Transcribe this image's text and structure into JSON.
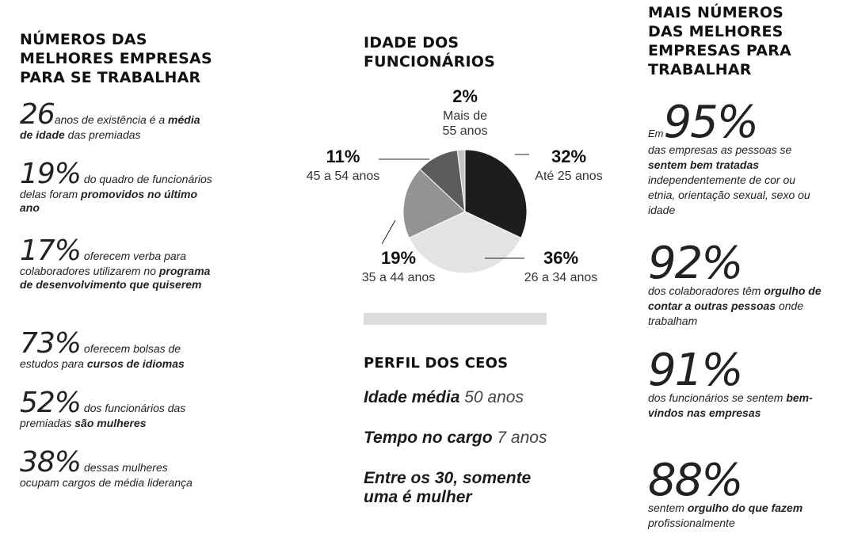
{
  "left": {
    "title_lines": [
      "NÚMEROS DAS",
      "MELHORES EMPRESAS",
      "PARA SE TRABALHAR"
    ],
    "stats": [
      {
        "big": "26",
        "pre": "anos de existência é a ",
        "bold": "média de idade",
        "post": " das premiadas"
      },
      {
        "big": "19%",
        "pre": "do quadro de funcionários delas foram ",
        "bold": "promovidos no último ano",
        "post": ""
      },
      {
        "big": "17%",
        "pre": "oferecem verba para colaboradores utilizarem no ",
        "bold": "programa de desenvolvimento que quiserem",
        "post": ""
      },
      {
        "big": "73%",
        "pre": "oferecem bolsas de estudos para ",
        "bold": "cursos de idiomas",
        "post": ""
      },
      {
        "big": "52%",
        "pre": "dos funcionários das premiadas  ",
        "bold": "são mulheres",
        "post": ""
      },
      {
        "big": "38%",
        "pre": "dessas mulheres ocupam cargos de média liderança",
        "bold": "",
        "post": ""
      }
    ]
  },
  "middle": {
    "title_lines": [
      "IDADE DOS",
      "FUNCIONÁRIOS"
    ],
    "ceo_title": "PERFIL DOS CEOS",
    "ceo_lines": [
      {
        "bold": "Idade média",
        "light": " 50 anos"
      },
      {
        "bold": "Tempo no cargo",
        "light": " 7 anos"
      },
      {
        "bold": "Entre os 30, somente uma é mulher",
        "light": ""
      }
    ]
  },
  "chart_data": {
    "type": "pie",
    "slices": [
      {
        "label": "Até 25 anos",
        "value": 32,
        "display": "32%",
        "color": "#1d1d1d"
      },
      {
        "label": "26 a 34 anos",
        "value": 36,
        "display": "36%",
        "color": "#e3e3e3"
      },
      {
        "label": "35 a 44 anos",
        "value": 19,
        "display": "19%",
        "color": "#939393"
      },
      {
        "label": "45 a 54 anos",
        "value": 11,
        "display": "11%",
        "color": "#5c5c5c"
      },
      {
        "label": "Mais de 55 anos",
        "value": 2,
        "display": "2%",
        "color": "#c4c4c4"
      }
    ]
  },
  "right": {
    "title_lines": [
      "MAIS NÚMEROS",
      "DAS MELHORES",
      "EMPRESAS PARA",
      "TRABALHAR"
    ],
    "stats": [
      {
        "prefix": "Em",
        "big": "95%",
        "pre": "das empresas as pessoas se ",
        "bold": "sentem bem tratadas",
        "post": " independentemente de cor ou etnia, orientação sexual, sexo ou idade"
      },
      {
        "prefix": "",
        "big": "92%",
        "pre": "dos colaboradores têm ",
        "bold": "orgulho de contar a outras pessoas",
        "post": " onde trabalham"
      },
      {
        "prefix": "",
        "big": "91%",
        "pre": "dos funcionários se sentem ",
        "bold": "bem-vindos nas empresas",
        "post": ""
      },
      {
        "prefix": "",
        "big": "88%",
        "pre": "sentem ",
        "bold": "orgulho do que fazem",
        "post": " profissionalmente"
      }
    ]
  }
}
